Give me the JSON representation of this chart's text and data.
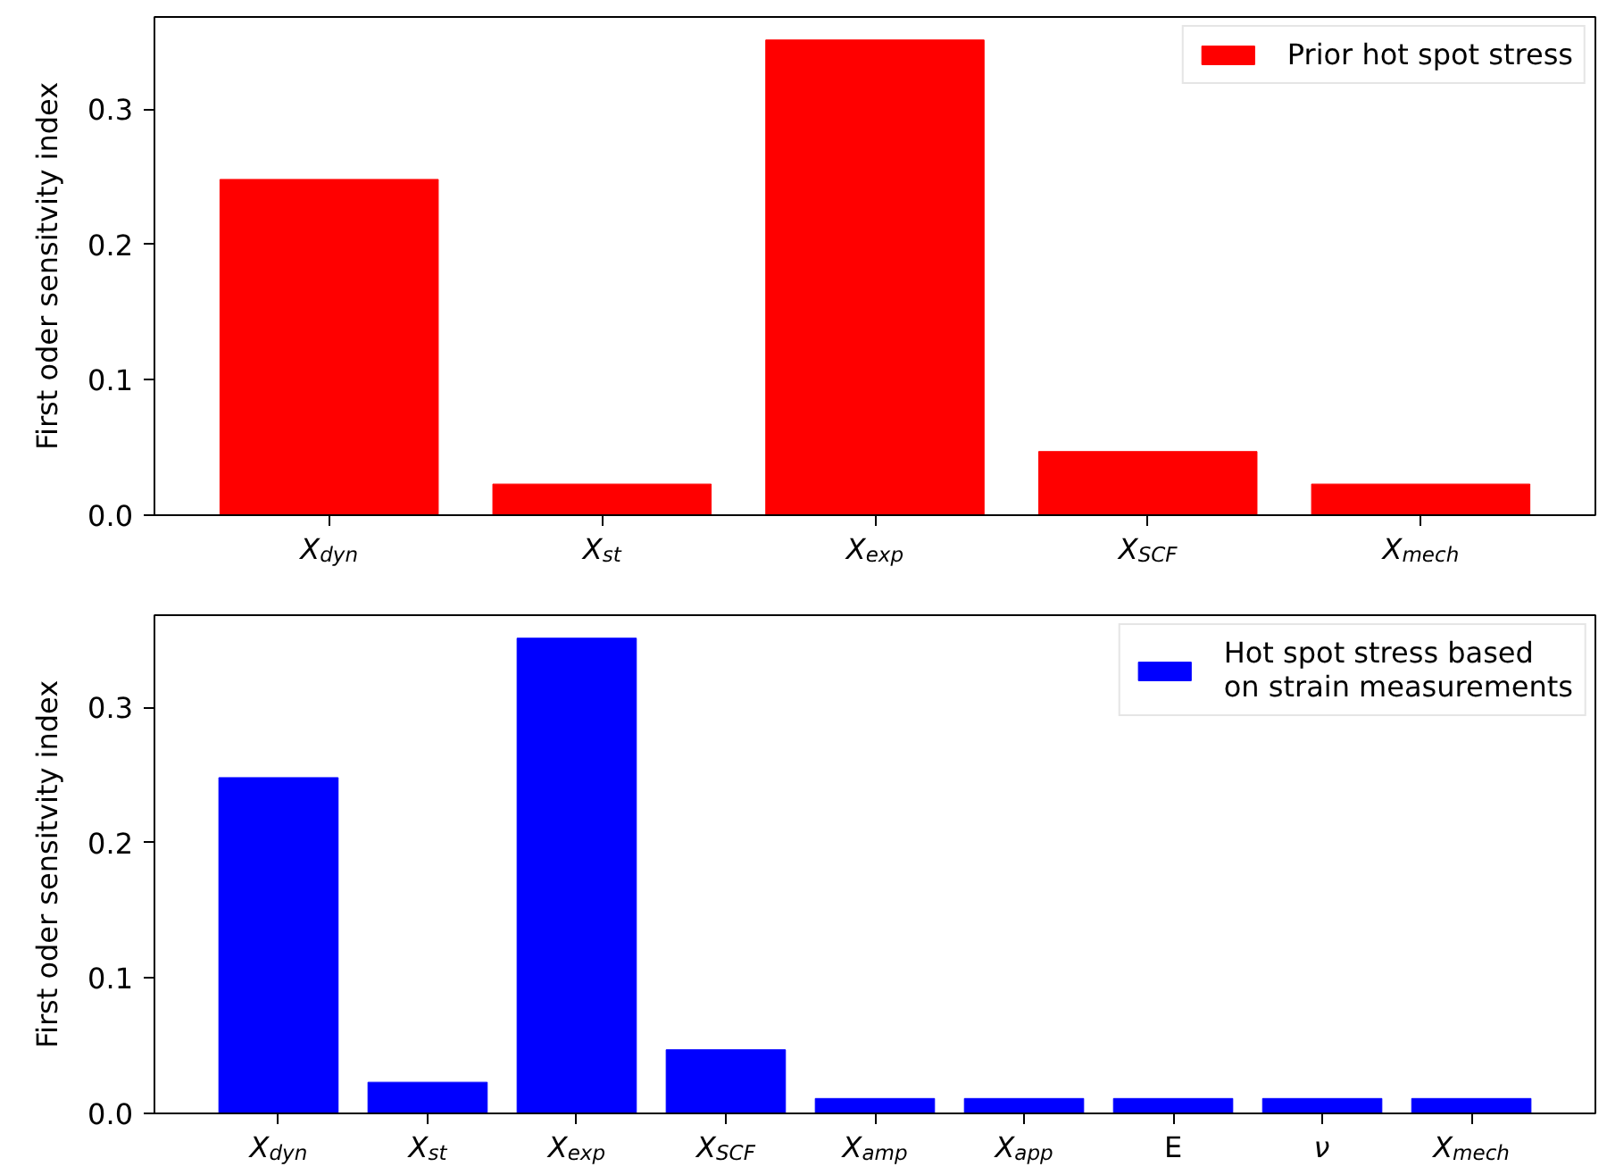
{
  "chart_data": [
    {
      "type": "bar",
      "ylabel": "First oder sensitvity index",
      "categories": [
        "X$_{dyn}$",
        "X$_{st}$",
        "X$_{exp}$",
        "X$_{SCF}$",
        "X$_{mech}$"
      ],
      "series": [
        {
          "name": "Prior hot spot stress",
          "color": "#ff0000",
          "values": [
            0.248,
            0.023,
            0.351,
            0.047,
            0.023
          ]
        }
      ],
      "ylim": [
        0,
        0.368
      ],
      "yticks": [
        {
          "value": 0,
          "label": "0.0"
        },
        0.1,
        0.2,
        0.3
      ],
      "legend": "top right"
    },
    {
      "type": "bar",
      "ylabel": "First oder sensitvity index",
      "categories": [
        "X$_{dyn}$",
        "X$_{st}$",
        "X$_{exp}$",
        "X$_{SCF}$",
        "X$_{amp}$",
        "X$_{app}$",
        "E",
        "ν",
        "X$_{mech}$"
      ],
      "series": [
        {
          "name": "Hot spot stress based\non strain measurements",
          "color": "#0000ff",
          "values": [
            0.248,
            0.023,
            0.351,
            0.047,
            0.011,
            0.011,
            0.011,
            0.011,
            0.011
          ]
        }
      ],
      "ylim": [
        0,
        0.368
      ],
      "yticks": [
        {
          "value": 0,
          "label": "0.0"
        },
        0.1,
        0.2,
        0.3
      ],
      "legend": "top right"
    }
  ]
}
